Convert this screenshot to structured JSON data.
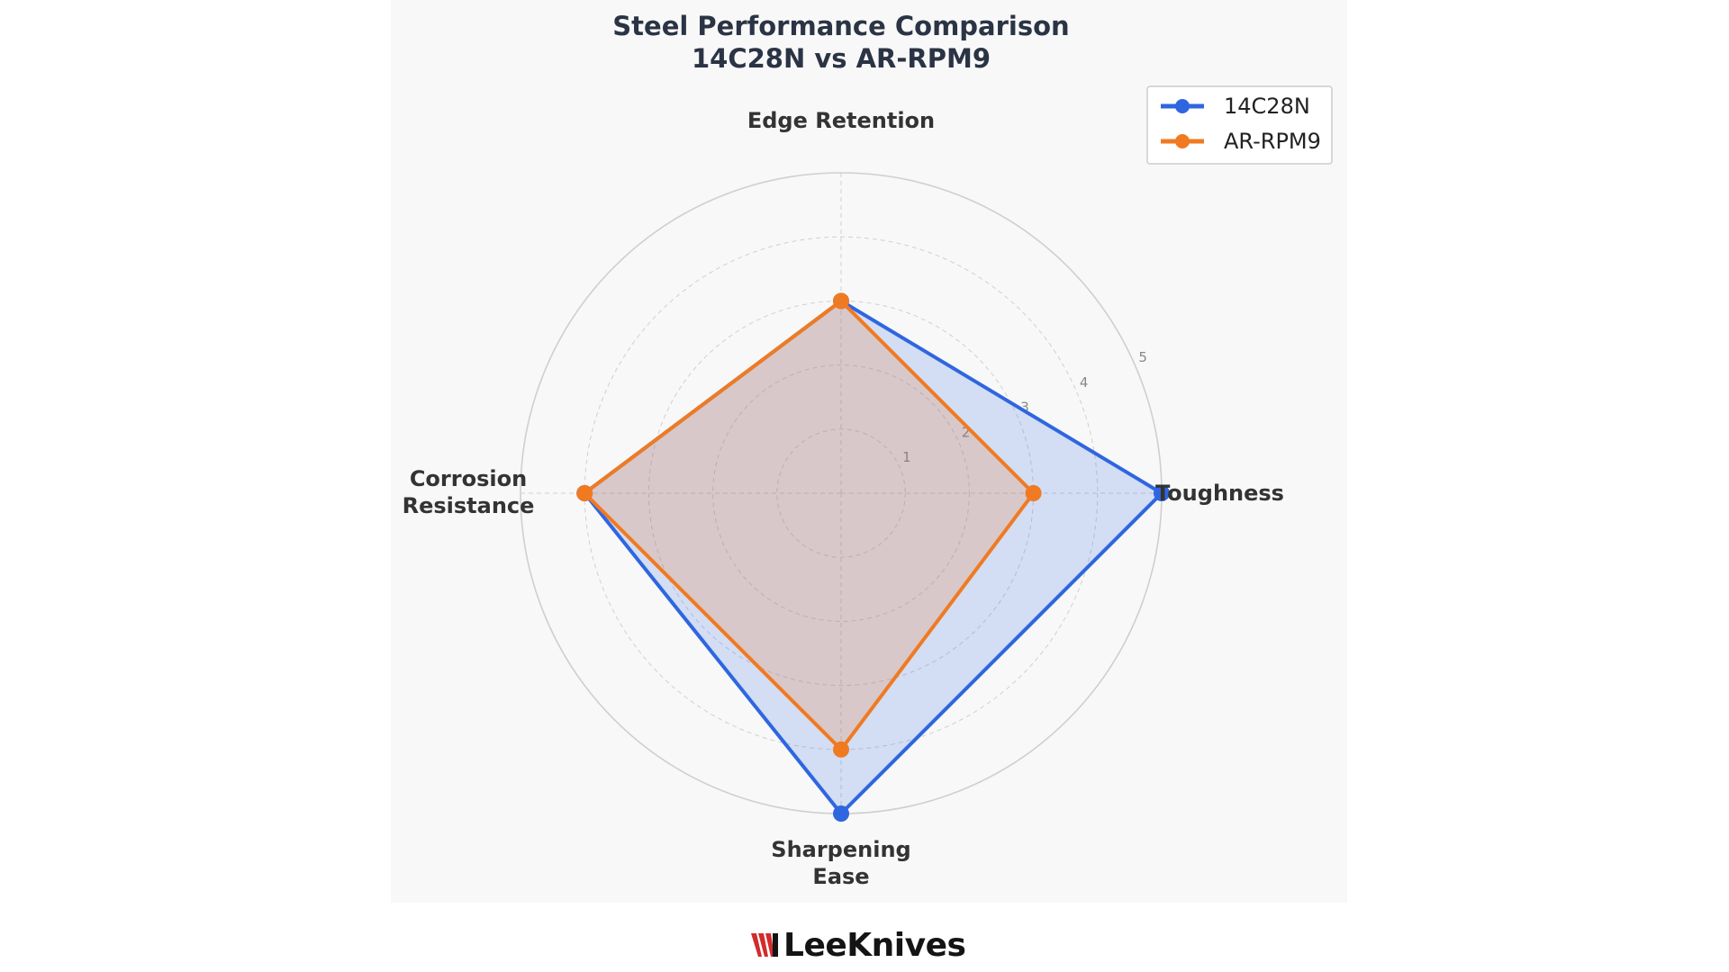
{
  "chart_data": {
    "type": "radar",
    "title": [
      "Steel Performance Comparison",
      "14C28N  vs  AR-RPM9"
    ],
    "axes": [
      [
        "Edge Retention"
      ],
      [
        "Toughness"
      ],
      [
        "Sharpening",
        "Ease"
      ],
      [
        "Corrosion",
        "Resistance"
      ]
    ],
    "r_range": [
      0,
      5
    ],
    "r_ticks": [
      "1",
      "2",
      "3",
      "4",
      "5"
    ],
    "grid": true,
    "legend_position": "top-right",
    "series": [
      {
        "name": "14C28N",
        "values": [
          3,
          5,
          5,
          4
        ],
        "color": "#2f66e0"
      },
      {
        "name": "AR-RPM9",
        "values": [
          3,
          3,
          4,
          4
        ],
        "color": "#f07a22"
      }
    ]
  },
  "brand": {
    "name": "LeeKnives",
    "icon": "red-stripes-icon",
    "accent": "#d22b2b"
  }
}
